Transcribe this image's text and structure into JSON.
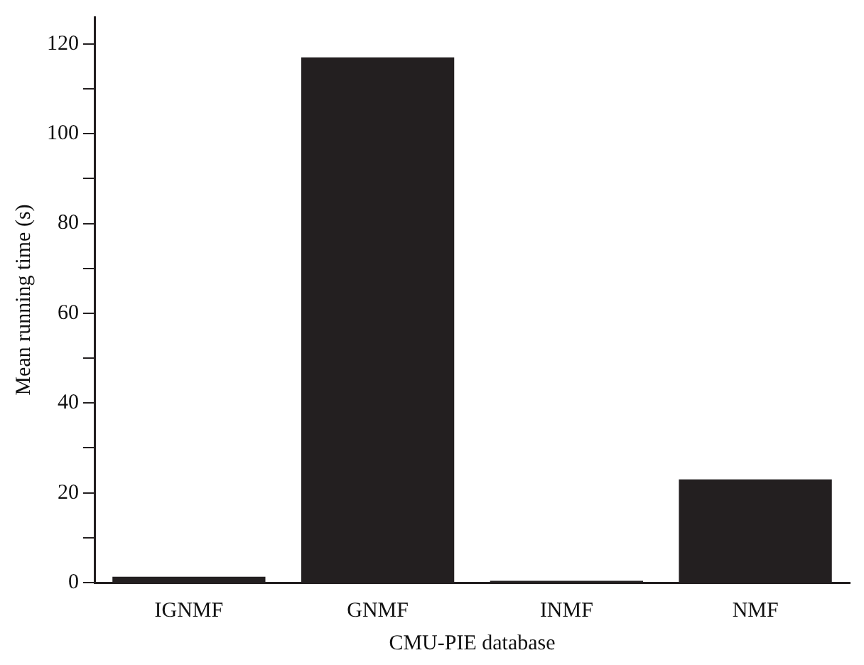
{
  "chart_data": {
    "type": "bar",
    "xlabel": "CMU-PIE database",
    "ylabel": "Mean running time (s)",
    "categories": [
      "IGNMF",
      "GNMF",
      "INMF",
      "NMF"
    ],
    "values": [
      1.3,
      117,
      0.4,
      23
    ],
    "color": "#231f20",
    "ylim": [
      0,
      126
    ],
    "yticks": [
      0,
      {
        "value": 10,
        "label": null
      },
      20,
      {
        "value": 30,
        "label": null
      },
      40,
      {
        "value": 50,
        "label": null
      },
      60,
      {
        "value": 70,
        "label": null
      },
      80,
      {
        "value": 90,
        "label": null
      },
      100,
      {
        "value": 110,
        "label": null
      },
      120
    ],
    "grid": false,
    "legend": false
  }
}
